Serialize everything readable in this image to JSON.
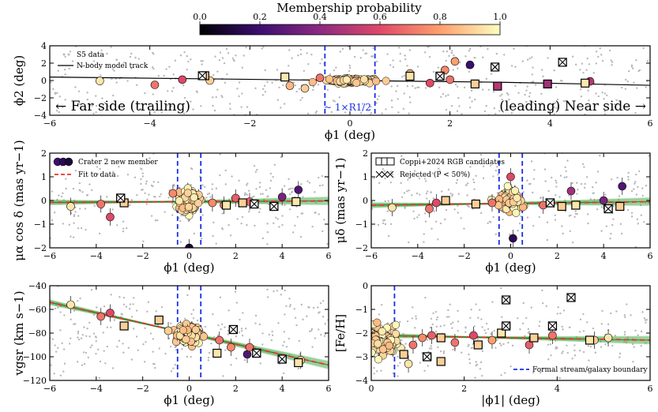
{
  "colorbar": {
    "title": "Membership probability",
    "ticks": [
      "0.0",
      "0.2",
      "0.4",
      "0.6",
      "0.8",
      "1.0"
    ],
    "stops": [
      "#000004",
      "#3b0f70",
      "#8c2981",
      "#de4968",
      "#fe9f6d",
      "#fcfdbf"
    ]
  },
  "colors": {
    "data_gray": "#b8b8b8",
    "model_track": "#000000",
    "boundary": "#1a2ee6",
    "fit_line": "#e8332b",
    "fit_band": "#4caf50"
  },
  "chart_data": [
    {
      "type": "scatter",
      "id": "top",
      "ylabel": "ϕ2 (deg)",
      "xlabel": "ϕ1 (deg)",
      "xlim": [
        -6,
        6
      ],
      "ylim": [
        -4,
        4
      ],
      "xticks": [
        "−6",
        "−4",
        "−2",
        "0",
        "2",
        "4",
        "6"
      ],
      "yticks": [
        "−4",
        "−2",
        "0",
        "2",
        "4"
      ],
      "legend": [
        "S5 data",
        "N-body model track"
      ],
      "annot_left_arrow": "← Far side (trailing)",
      "annot_right_arrow": "(leading) Near side →",
      "annot_center": "~ 1×R1/2",
      "members": [
        {
          "x": -5.0,
          "y": -0.05,
          "p": 0.95
        },
        {
          "x": -3.9,
          "y": -0.5,
          "p": 0.7
        },
        {
          "x": -3.35,
          "y": 0.1,
          "p": 0.6
        },
        {
          "x": -2.8,
          "y": 0.0,
          "p": 0.9
        },
        {
          "x": -1.2,
          "y": -0.6,
          "p": 0.85
        },
        {
          "x": -0.9,
          "y": -0.9,
          "p": 0.9
        },
        {
          "x": -0.6,
          "y": 0.3,
          "p": 0.7
        },
        {
          "x": 1.2,
          "y": 0.8,
          "p": 0.85
        },
        {
          "x": 1.6,
          "y": -0.3,
          "p": 0.6
        },
        {
          "x": 1.9,
          "y": 1.2,
          "p": 0.75
        },
        {
          "x": 2.1,
          "y": 2.2,
          "p": 0.8
        },
        {
          "x": 2.4,
          "y": 1.8,
          "p": 0.2
        },
        {
          "x": 2.0,
          "y": 0.1,
          "p": 0.7
        },
        {
          "x": 4.8,
          "y": -0.1,
          "p": 0.5
        }
      ],
      "squares": [
        {
          "x": -1.3,
          "y": 0.4,
          "p": 0.95
        },
        {
          "x": -2.9,
          "y": 0.55,
          "p": 0.9
        },
        {
          "x": 1.2,
          "y": 0.5,
          "p": 0.95
        },
        {
          "x": 2.5,
          "y": -0.4,
          "p": 0.9
        },
        {
          "x": 2.95,
          "y": -0.65,
          "p": 0.5
        },
        {
          "x": 3.95,
          "y": -0.4,
          "p": 0.45
        },
        {
          "x": 4.7,
          "y": -0.3,
          "p": 0.95
        },
        {
          "x": 1.8,
          "y": 0.5,
          "p": 0.7
        }
      ],
      "rejected": [
        {
          "x": -2.95,
          "y": 0.55
        },
        {
          "x": 1.8,
          "y": 0.5
        },
        {
          "x": 2.9,
          "y": 1.55
        },
        {
          "x": 4.25,
          "y": 2.1
        }
      ],
      "track": [
        [
          -6,
          0.4
        ],
        [
          -3,
          0.2
        ],
        [
          0,
          0.0
        ],
        [
          3,
          -0.2
        ],
        [
          6,
          -0.55
        ]
      ]
    },
    {
      "type": "scatter",
      "id": "pmra",
      "ylabel": "μα cos δ (mas yr−1)",
      "xlabel": "ϕ1 (deg)",
      "xlim": [
        -6,
        6
      ],
      "ylim": [
        -2,
        2
      ],
      "xticks": [
        "−6",
        "−4",
        "−2",
        "0",
        "2",
        "4",
        "6"
      ],
      "yticks": [
        "−2",
        "−1",
        "0",
        "1",
        "2"
      ],
      "legend": [
        "Crater 2 new member",
        "Fit to data"
      ],
      "fit": [
        [
          -6,
          -0.08
        ],
        [
          6,
          -0.02
        ]
      ],
      "members": [
        {
          "x": -5.1,
          "y": -0.25,
          "p": 0.95
        },
        {
          "x": -3.8,
          "y": -0.15,
          "p": 0.7
        },
        {
          "x": -3.4,
          "y": -0.7,
          "p": 0.6
        },
        {
          "x": -0.7,
          "y": 0.3,
          "p": 0.75
        },
        {
          "x": 1.0,
          "y": -0.1,
          "p": 0.75
        },
        {
          "x": 1.5,
          "y": -0.2,
          "p": 0.7
        },
        {
          "x": 2.0,
          "y": 0.1,
          "p": 0.65
        },
        {
          "x": 2.6,
          "y": -0.05,
          "p": 0.65
        },
        {
          "x": 4.0,
          "y": 0.15,
          "p": 0.35
        },
        {
          "x": 4.7,
          "y": 0.45,
          "p": 0.25
        },
        {
          "x": 0.0,
          "y": -2.0,
          "p": 0.1
        }
      ],
      "squares": [
        {
          "x": -2.8,
          "y": -0.1,
          "p": 0.9
        },
        {
          "x": 1.6,
          "y": -0.2,
          "p": 0.95
        },
        {
          "x": 2.3,
          "y": -0.1,
          "p": 0.9
        },
        {
          "x": 2.8,
          "y": -0.15,
          "p": 0.45
        },
        {
          "x": 4.6,
          "y": -0.05,
          "p": 0.95
        },
        {
          "x": -2.95,
          "y": 0.1,
          "p": 0.9
        },
        {
          "x": 3.65,
          "y": -0.25,
          "p": 0.9
        }
      ],
      "rejected": [
        {
          "x": -2.95,
          "y": 0.1
        },
        {
          "x": 3.65,
          "y": -0.25
        },
        {
          "x": 2.8,
          "y": -0.15
        }
      ]
    },
    {
      "type": "scatter",
      "id": "pmdec",
      "ylabel": "μδ (mas yr−1)",
      "xlabel": "ϕ1 (deg)",
      "xlim": [
        -6,
        6
      ],
      "ylim": [
        -2,
        2
      ],
      "xticks": [
        "−6",
        "−4",
        "−2",
        "0",
        "2",
        "4",
        "6"
      ],
      "yticks": [
        "−2",
        "−1",
        "0",
        "1",
        "2"
      ],
      "legend": [
        "Coppi+2024 RGB candidates",
        "Rejected (P < 50%)"
      ],
      "fit": [
        [
          -6,
          -0.2
        ],
        [
          6,
          -0.05
        ]
      ],
      "members": [
        {
          "x": -5.1,
          "y": -0.3,
          "p": 0.95
        },
        {
          "x": -3.5,
          "y": -0.35,
          "p": 0.7
        },
        {
          "x": -3.2,
          "y": -0.1,
          "p": 0.6
        },
        {
          "x": -0.8,
          "y": -0.1,
          "p": 0.7
        },
        {
          "x": 0.0,
          "y": 1.0,
          "p": 0.6
        },
        {
          "x": 0.1,
          "y": -1.6,
          "p": 0.15
        },
        {
          "x": 1.4,
          "y": -0.2,
          "p": 0.7
        },
        {
          "x": 2.6,
          "y": 0.4,
          "p": 0.45
        },
        {
          "x": 4.0,
          "y": 0.0,
          "p": 0.35
        },
        {
          "x": 4.8,
          "y": 0.6,
          "p": 0.25
        }
      ],
      "squares": [
        {
          "x": -2.8,
          "y": 0.0,
          "p": 0.9
        },
        {
          "x": -1.5,
          "y": -0.15,
          "p": 0.9
        },
        {
          "x": 1.7,
          "y": -0.1,
          "p": 0.95
        },
        {
          "x": 2.2,
          "y": -0.25,
          "p": 0.9
        },
        {
          "x": 2.8,
          "y": -0.2,
          "p": 0.95
        },
        {
          "x": 4.7,
          "y": -0.25,
          "p": 0.9
        },
        {
          "x": 4.2,
          "y": -0.35,
          "p": 0.9
        }
      ],
      "rejected": [
        {
          "x": 4.2,
          "y": -0.35
        },
        {
          "x": 1.7,
          "y": -0.1
        }
      ]
    },
    {
      "type": "scatter",
      "id": "vgsr",
      "ylabel": "vgsr (km s−1)",
      "xlabel": "ϕ1 (deg)",
      "xlim": [
        -6,
        6
      ],
      "ylim": [
        -120,
        -40
      ],
      "xticks": [
        "−6",
        "−4",
        "−2",
        "0",
        "2",
        "4",
        "6"
      ],
      "yticks": [
        "−120",
        "−100",
        "−80",
        "−60",
        "−40"
      ],
      "fit": [
        [
          -6,
          -54
        ],
        [
          6,
          -107
        ]
      ],
      "members": [
        {
          "x": -5.1,
          "y": -56,
          "p": 0.95
        },
        {
          "x": -3.8,
          "y": -66,
          "p": 0.7
        },
        {
          "x": -3.4,
          "y": -63,
          "p": 0.6
        },
        {
          "x": -0.9,
          "y": -78,
          "p": 0.9
        },
        {
          "x": 1.3,
          "y": -86,
          "p": 0.7
        },
        {
          "x": 1.8,
          "y": -92,
          "p": 0.75
        },
        {
          "x": 2.5,
          "y": -98,
          "p": 0.25
        },
        {
          "x": 2.6,
          "y": -92,
          "p": 0.7
        },
        {
          "x": 4.8,
          "y": -103,
          "p": 0.9
        }
      ],
      "squares": [
        {
          "x": -2.8,
          "y": -74,
          "p": 0.9
        },
        {
          "x": -1.3,
          "y": -69,
          "p": 0.9
        },
        {
          "x": 1.2,
          "y": -97,
          "p": 0.95
        },
        {
          "x": 1.9,
          "y": -77,
          "p": 0.95
        },
        {
          "x": 2.9,
          "y": -97,
          "p": 0.45
        },
        {
          "x": 4.0,
          "y": -102,
          "p": 0.35
        },
        {
          "x": 4.7,
          "y": -105,
          "p": 0.95
        }
      ],
      "rejected": [
        {
          "x": 1.9,
          "y": -77
        },
        {
          "x": 2.9,
          "y": -97
        },
        {
          "x": 4.0,
          "y": -102
        }
      ]
    },
    {
      "type": "scatter",
      "id": "feh",
      "ylabel": "[Fe/H]",
      "xlabel": "|ϕ1| (deg)",
      "xlim": [
        0,
        6
      ],
      "ylim": [
        -4,
        0
      ],
      "xticks": [
        "0",
        "2",
        "4",
        "6"
      ],
      "yticks": [
        "−4",
        "−3",
        "−2",
        "−1",
        "0"
      ],
      "legend": [
        "Formal stream/galaxy boundary"
      ],
      "fit": [
        [
          0,
          -2.1
        ],
        [
          6,
          -2.3
        ]
      ],
      "members": [
        {
          "x": 0.8,
          "y": -3.3,
          "p": 0.95
        },
        {
          "x": 0.9,
          "y": -2.5,
          "p": 0.7
        },
        {
          "x": 1.1,
          "y": -2.2,
          "p": 0.75
        },
        {
          "x": 1.3,
          "y": -2.1,
          "p": 0.65
        },
        {
          "x": 1.8,
          "y": -2.4,
          "p": 0.7
        },
        {
          "x": 2.2,
          "y": -2.1,
          "p": 0.6
        },
        {
          "x": 2.6,
          "y": -2.3,
          "p": 0.8
        },
        {
          "x": 3.4,
          "y": -2.5,
          "p": 0.65
        },
        {
          "x": 3.9,
          "y": -2.1,
          "p": 0.7
        },
        {
          "x": 4.8,
          "y": -2.3,
          "p": 0.9
        },
        {
          "x": 5.1,
          "y": -2.2,
          "p": 0.95
        }
      ],
      "squares": [
        {
          "x": 0.7,
          "y": -2.9,
          "p": 0.9
        },
        {
          "x": 1.2,
          "y": -3.0,
          "p": 0.9
        },
        {
          "x": 1.5,
          "y": -2.2,
          "p": 0.9
        },
        {
          "x": 2.3,
          "y": -2.5,
          "p": 0.9
        },
        {
          "x": 2.8,
          "y": -2.0,
          "p": 0.95
        },
        {
          "x": 2.9,
          "y": -1.7,
          "p": 0.45
        },
        {
          "x": 3.5,
          "y": -2.2,
          "p": 0.9
        },
        {
          "x": 3.9,
          "y": -1.7,
          "p": 0.35
        },
        {
          "x": 4.7,
          "y": -2.3,
          "p": 0.95
        },
        {
          "x": 1.5,
          "y": -3.2,
          "p": 0.9
        }
      ],
      "rejected": [
        {
          "x": 2.9,
          "y": -0.6
        },
        {
          "x": 4.3,
          "y": -0.5
        },
        {
          "x": 1.2,
          "y": -3.0
        },
        {
          "x": 2.9,
          "y": -1.7
        },
        {
          "x": 3.9,
          "y": -1.7
        }
      ]
    }
  ]
}
